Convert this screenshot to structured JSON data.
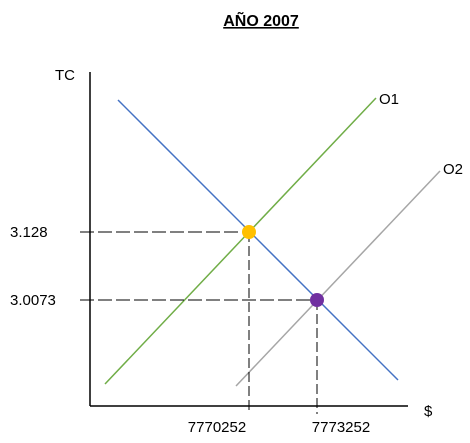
{
  "title": "AÑO 2007",
  "axes": {
    "y_label": "TC",
    "x_label": "$"
  },
  "lines": {
    "demand": {
      "color": "#4472C4"
    },
    "o1": {
      "label": "O1",
      "color": "#70AD47"
    },
    "o2": {
      "label": "O2",
      "color": "#A6A6A6"
    }
  },
  "points": {
    "eq1": {
      "tc_label": "3.128",
      "q_label": "7770252",
      "color": "#FFC000"
    },
    "eq2": {
      "tc_label": "3.0073",
      "q_label": "7773252",
      "color": "#7030A0"
    }
  },
  "guide_color": "#000000"
}
